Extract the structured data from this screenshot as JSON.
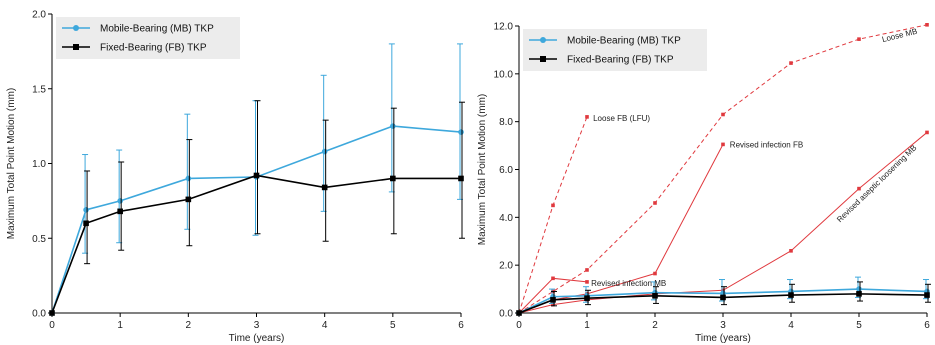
{
  "chart_data": [
    {
      "type": "line",
      "xlabel": "Time (years)",
      "ylabel": "Maximum Total Point Motion (mm)",
      "xlim": [
        0,
        6
      ],
      "ylim": [
        0,
        2.0
      ],
      "x_ticks": [
        "0",
        "1",
        "2",
        "3",
        "4",
        "5",
        "6"
      ],
      "y_ticks": [
        "0.0",
        "0.5",
        "1.0",
        "1.5",
        "2.0"
      ],
      "legend_position": "top-left",
      "series": [
        {
          "name": "Mobile-Bearing (MB) TKP",
          "color": "#3ea8dc",
          "marker": "circle",
          "x": [
            0,
            0.5,
            1,
            2,
            3,
            4,
            5,
            6
          ],
          "y": [
            0,
            0.69,
            0.75,
            0.9,
            0.91,
            1.08,
            1.25,
            1.21
          ],
          "err_low": [
            null,
            0.4,
            0.47,
            0.56,
            0.52,
            0.68,
            0.81,
            0.76
          ],
          "err_high": [
            null,
            1.06,
            1.09,
            1.33,
            1.42,
            1.59,
            1.8,
            1.8
          ]
        },
        {
          "name": "Fixed-Bearing (FB) TKP",
          "color": "#000000",
          "marker": "square",
          "x": [
            0,
            0.5,
            1,
            2,
            3,
            4,
            5,
            6
          ],
          "y": [
            0,
            0.6,
            0.68,
            0.76,
            0.92,
            0.84,
            0.9,
            0.9
          ],
          "err_low": [
            null,
            0.33,
            0.42,
            0.45,
            0.53,
            0.48,
            0.53,
            0.5
          ],
          "err_high": [
            null,
            0.95,
            1.01,
            1.16,
            1.42,
            1.29,
            1.37,
            1.41
          ]
        }
      ]
    },
    {
      "type": "line",
      "xlabel": "Time (years)",
      "ylabel": "Maximum Total Point Motion (mm)",
      "xlim": [
        0,
        6
      ],
      "ylim": [
        0,
        12.0
      ],
      "x_ticks": [
        "0",
        "1",
        "2",
        "3",
        "4",
        "5",
        "6"
      ],
      "y_ticks": [
        "0.0",
        "2.0",
        "4.0",
        "6.0",
        "8.0",
        "10.0",
        "12.0"
      ],
      "legend_position": "top-left",
      "series": [
        {
          "name": "Mobile-Bearing (MB) TKP",
          "color": "#3ea8dc",
          "marker": "circle",
          "x": [
            0,
            0.5,
            1,
            2,
            3,
            4,
            5,
            6
          ],
          "y": [
            0,
            0.68,
            0.72,
            0.85,
            0.82,
            0.9,
            1.0,
            0.9
          ],
          "err_low": [
            null,
            0.4,
            0.45,
            0.55,
            0.5,
            0.6,
            0.65,
            0.6
          ],
          "err_high": [
            null,
            1.0,
            1.1,
            1.3,
            1.4,
            1.4,
            1.5,
            1.4
          ]
        },
        {
          "name": "Fixed-Bearing (FB) TKP",
          "color": "#000000",
          "marker": "square",
          "x": [
            0,
            0.5,
            1,
            2,
            3,
            4,
            5,
            6
          ],
          "y": [
            0,
            0.55,
            0.62,
            0.72,
            0.65,
            0.75,
            0.8,
            0.75
          ],
          "err_low": [
            null,
            0.3,
            0.35,
            0.4,
            0.35,
            0.45,
            0.5,
            0.45
          ],
          "err_high": [
            null,
            0.9,
            0.95,
            1.1,
            1.1,
            1.2,
            1.3,
            1.2
          ]
        },
        {
          "name": "Loose FB (LFU)",
          "color": "#e0393e",
          "dashed": true,
          "x": [
            0,
            0.5,
            1
          ],
          "y": [
            0,
            4.5,
            8.2
          ]
        },
        {
          "name": "Loose MB",
          "color": "#e0393e",
          "dashed": true,
          "x": [
            0,
            0.5,
            1,
            2,
            3,
            4,
            5,
            6
          ],
          "y": [
            0,
            0.9,
            1.8,
            4.6,
            8.3,
            10.45,
            11.45,
            12.05
          ]
        },
        {
          "name": "Revised infection FB",
          "color": "#e0393e",
          "dashed": false,
          "x": [
            0,
            0.5,
            1,
            2,
            3
          ],
          "y": [
            0,
            0.55,
            0.8,
            1.65,
            7.05
          ]
        },
        {
          "name": "Revised aseptic loosening MB",
          "color": "#e0393e",
          "dashed": false,
          "x": [
            0,
            0.5,
            1,
            2,
            3,
            4,
            5,
            6
          ],
          "y": [
            0,
            0.35,
            0.55,
            0.8,
            0.95,
            2.6,
            5.2,
            7.55
          ]
        },
        {
          "name": "Revised infection MB",
          "color": "#e0393e",
          "dashed": false,
          "x": [
            0,
            0.5,
            1
          ],
          "y": [
            0,
            1.45,
            1.3
          ]
        }
      ],
      "annotations": [
        {
          "text": "Loose FB (LFU)",
          "series": 2
        },
        {
          "text": "Loose MB",
          "series": 3
        },
        {
          "text": "Revised infection FB",
          "series": 4
        },
        {
          "text": "Revised aseptic loosening MB",
          "series": 5
        },
        {
          "text": "Revised infection MB",
          "series": 6
        }
      ]
    }
  ]
}
